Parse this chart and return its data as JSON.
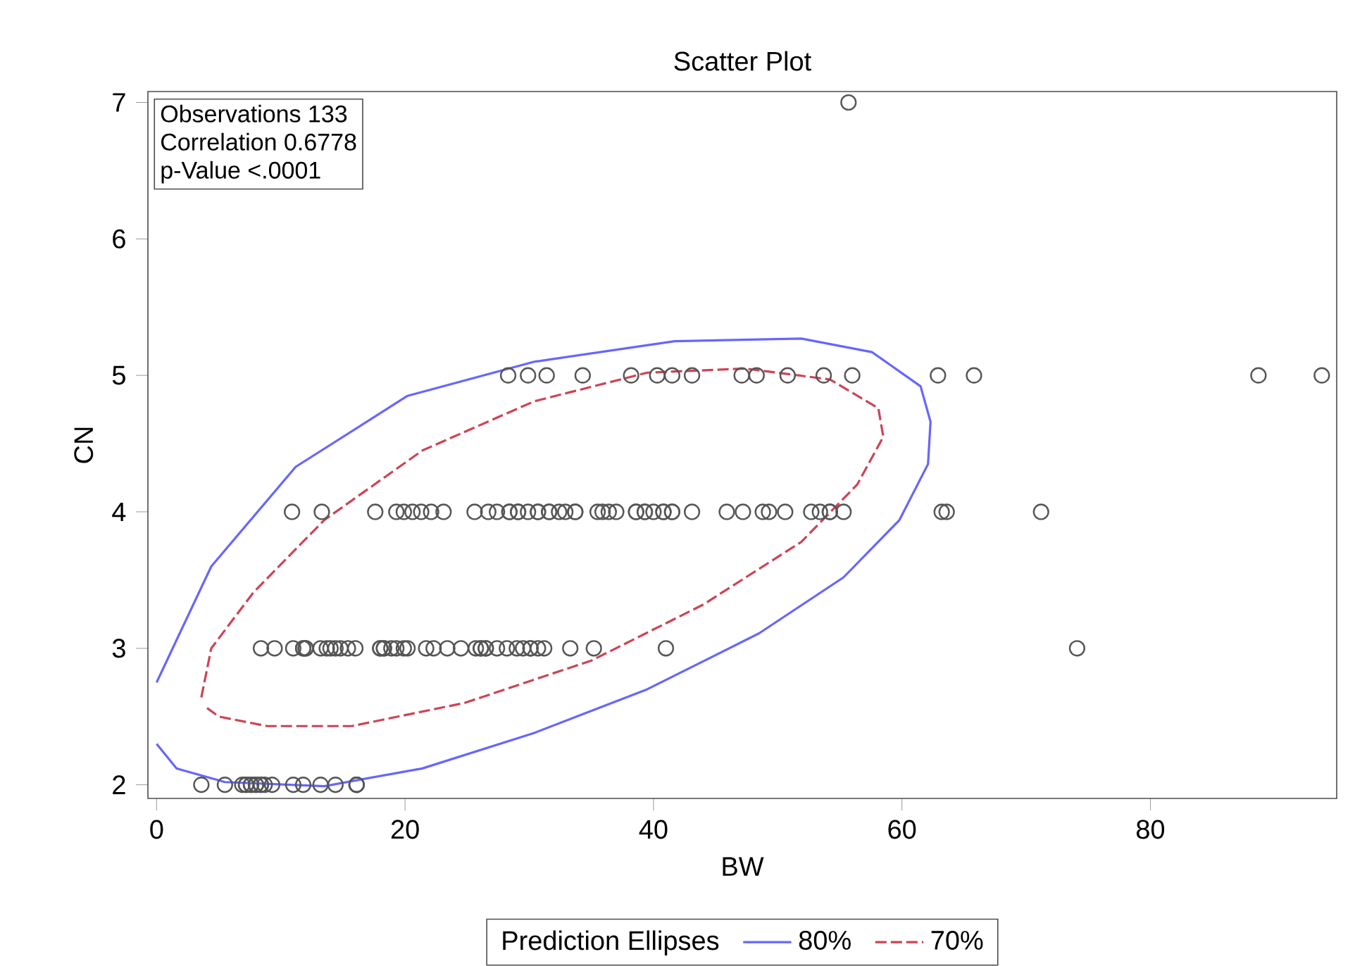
{
  "chart_data": {
    "type": "scatter",
    "title": "Scatter Plot",
    "xlabel": "BW",
    "ylabel": "CN",
    "xlim": [
      -0.7,
      95
    ],
    "ylim": [
      1.9,
      7.08
    ],
    "xticks": [
      0,
      20,
      40,
      60,
      80
    ],
    "yticks": [
      2,
      3,
      4,
      5,
      6,
      7
    ],
    "marker": "circle",
    "grid": false,
    "legend": "bottom",
    "legend_title": "Prediction Ellipses",
    "annotations": [
      "Observations 133",
      "Correlation 0.6778",
      "p-Value <.0001"
    ],
    "series": [
      {
        "color": "#555555",
        "x": [
          55.7,
          28.3,
          29.9,
          31.4,
          34.3,
          38.2,
          40.3,
          41.5,
          43.1,
          47.1,
          48.3,
          50.8,
          53.7,
          56.0,
          62.9,
          65.8,
          88.7,
          93.8,
          10.9,
          13.3,
          17.6,
          19.3,
          19.9,
          20.6,
          21.3,
          22.1,
          23.1,
          25.6,
          26.7,
          27.4,
          28.4,
          29.1,
          29.9,
          30.7,
          31.6,
          32.4,
          32.9,
          33.7,
          35.5,
          35.9,
          36.4,
          37.0,
          38.6,
          39.3,
          40.0,
          40.8,
          41.5,
          43.1,
          45.9,
          47.2,
          48.8,
          49.3,
          50.6,
          52.7,
          53.4,
          54.2,
          55.3,
          63.2,
          63.6,
          71.2,
          28.4,
          29.1,
          30.7,
          31.6,
          33.7,
          38.6,
          39.3,
          40.8,
          41.5,
          54.2,
          8.4,
          9.5,
          11.0,
          11.8,
          12.0,
          13.2,
          13.7,
          14.0,
          14.4,
          14.8,
          15.4,
          16.0,
          18.0,
          18.3,
          18.9,
          19.3,
          19.9,
          20.2,
          21.7,
          22.3,
          23.4,
          24.5,
          25.7,
          26.1,
          26.5,
          27.4,
          28.2,
          29.0,
          29.5,
          30.1,
          30.7,
          31.2,
          33.3,
          35.2,
          41.0,
          74.1,
          11.8,
          12.0,
          18.0,
          18.3,
          26.1,
          26.5,
          30.1,
          3.6,
          5.5,
          6.9,
          7.2,
          7.6,
          8.0,
          8.4,
          8.7,
          9.3,
          11.0,
          11.8,
          13.2,
          14.4,
          16.1,
          7.2,
          7.6,
          8.0,
          8.4,
          16.1,
          16.1
        ],
        "values": [
          7,
          5,
          5,
          5,
          5,
          5,
          5,
          5,
          5,
          5,
          5,
          5,
          5,
          5,
          5,
          5,
          5,
          5,
          4,
          4,
          4,
          4,
          4,
          4,
          4,
          4,
          4,
          4,
          4,
          4,
          4,
          4,
          4,
          4,
          4,
          4,
          4,
          4,
          4,
          4,
          4,
          4,
          4,
          4,
          4,
          4,
          4,
          4,
          4,
          4,
          4,
          4,
          4,
          4,
          4,
          4,
          4,
          4,
          4,
          4,
          4,
          4,
          4,
          4,
          4,
          4,
          4,
          4,
          4,
          4,
          3,
          3,
          3,
          3,
          3,
          3,
          3,
          3,
          3,
          3,
          3,
          3,
          3,
          3,
          3,
          3,
          3,
          3,
          3,
          3,
          3,
          3,
          3,
          3,
          3,
          3,
          3,
          3,
          3,
          3,
          3,
          3,
          3,
          3,
          3,
          3,
          3,
          3,
          3,
          3,
          3,
          3,
          3,
          2,
          2,
          2,
          2,
          2,
          2,
          2,
          2,
          2,
          2,
          2,
          2,
          2,
          2,
          2,
          2,
          2,
          2,
          2,
          2
        ]
      },
      {
        "type": "line",
        "name": "80%",
        "color": "#6666ff",
        "line_style": "solid",
        "marker": "none",
        "x": [
          0,
          4.4,
          11.2,
          20.2,
          30.4,
          41.7,
          51.9,
          57.6,
          61.5,
          62.3,
          62.1,
          59.8,
          55.3,
          48.5,
          39.5,
          30.4,
          21.4,
          13.5,
          5.5,
          1.6,
          0
        ],
        "values": [
          2.75,
          3.6,
          4.33,
          4.85,
          5.1,
          5.25,
          5.27,
          5.17,
          4.92,
          4.66,
          4.35,
          3.94,
          3.52,
          3.11,
          2.7,
          2.38,
          2.12,
          1.99,
          2.02,
          2.12,
          2.3
        ]
      },
      {
        "type": "line",
        "name": "70%",
        "color": "#cc4455",
        "line_style": "dashed",
        "marker": "none",
        "x": [
          3.6,
          4.4,
          7.8,
          13.5,
          21.4,
          30.4,
          39.5,
          47.4,
          54.2,
          58.1,
          58.5,
          56.4,
          51.9,
          44.0,
          35.0,
          24.8,
          15.7,
          8.9,
          5.0,
          3.8
        ],
        "values": [
          2.64,
          3.0,
          3.41,
          3.94,
          4.45,
          4.81,
          5.02,
          5.05,
          4.97,
          4.76,
          4.55,
          4.2,
          3.78,
          3.32,
          2.91,
          2.6,
          2.43,
          2.43,
          2.5,
          2.58
        ]
      }
    ]
  }
}
